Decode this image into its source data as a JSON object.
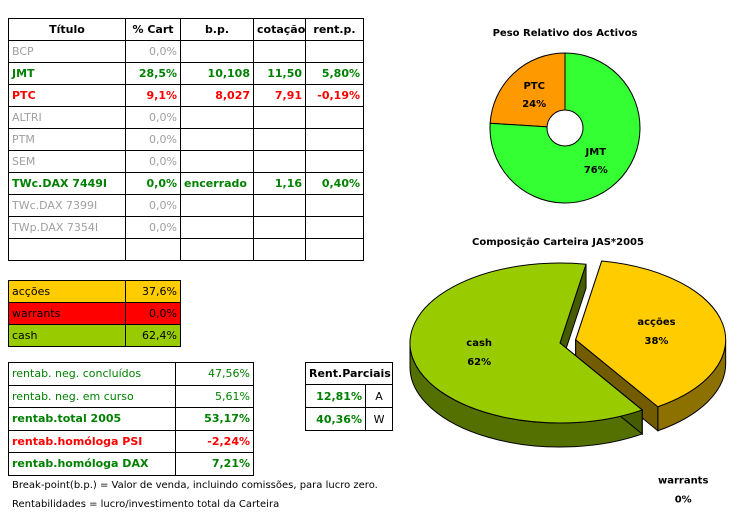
{
  "table": {
    "header": [
      "Título",
      "% Cart",
      "b.p.",
      "cotação",
      "rent.p."
    ],
    "rows": [
      {
        "color": "#a0a0a0",
        "cells": [
          "BCP",
          "0,0%"
        ]
      },
      {
        "color": "#008000",
        "cells": [
          "JMT",
          "28,5%",
          "10,108",
          "11,50",
          "5,80%"
        ]
      },
      {
        "color": "#ff0000",
        "cells": [
          "PTC",
          "9,1%",
          "8,027",
          "7,91",
          "-0,19%"
        ]
      },
      {
        "color": "#a0a0a0",
        "cells": [
          "ALTRI",
          "0,0%"
        ]
      },
      {
        "color": "#a0a0a0",
        "cells": [
          "PTM",
          "0,0%"
        ]
      },
      {
        "color": "#a0a0a0",
        "cells": [
          "SEM",
          "0,0%"
        ]
      },
      {
        "color": "#008000",
        "cells": [
          "TWc.DAX 7449I",
          "0,0%",
          "encerrado",
          "1,16",
          "0,40%"
        ]
      },
      {
        "color": "#a0a0a0",
        "cells": [
          "TWc.DAX 7399I",
          "0,0%"
        ]
      },
      {
        "color": "#a0a0a0",
        "cells": [
          "TWp.DAX 7354I",
          "0,0%"
        ]
      }
    ]
  },
  "allocation": [
    {
      "color": "#ffcc00",
      "cells": [
        "acções",
        "37,6%"
      ]
    },
    {
      "color": "#ff0000",
      "cells": [
        "warrants",
        "0,0%"
      ]
    },
    {
      "color": "#99cc00",
      "cells": [
        "cash",
        "62,4%"
      ]
    }
  ],
  "returns": [
    {
      "color": "#008000",
      "bold": false,
      "cells": [
        "rentab. neg. concluídos",
        "47,56%"
      ]
    },
    {
      "color": "#008000",
      "bold": false,
      "cells": [
        "rentab. neg. em curso",
        "5,61%"
      ]
    },
    {
      "color": "#008000",
      "bold": true,
      "cells": [
        "rentab.total 2005",
        "53,17%"
      ]
    },
    {
      "color": "#ff0000",
      "bold": true,
      "cells": [
        "rentab.homóloga PSI",
        "-2,24%"
      ]
    },
    {
      "color": "#008000",
      "bold": true,
      "cells": [
        "rentab.homóloga DAX",
        "7,21%"
      ]
    }
  ],
  "partial": {
    "header": "Rent.Parciais",
    "rows": [
      [
        "12,81%",
        "A"
      ],
      [
        "40,36%",
        "W"
      ]
    ]
  },
  "notes": [
    "Break-point(b.p.) = Valor de venda, incluindo comissões, para lucro zero.",
    "Rentabilidades = lucro/investimento total da Carteira"
  ],
  "chart_data": [
    {
      "type": "donut",
      "title": "Peso Relativo dos Activos",
      "categories": [
        "PTC",
        "JMT"
      ],
      "values": [
        24,
        76
      ],
      "value_labels": [
        "24%",
        "76%"
      ],
      "colors": [
        "#ff9900",
        "#33ff33"
      ]
    },
    {
      "type": "pie3d",
      "title": "Composição Carteira JAS*2005",
      "categories": [
        "acções",
        "warrants",
        "cash"
      ],
      "values": [
        38,
        0,
        62
      ],
      "value_labels": [
        "38%",
        "0%",
        "62%"
      ],
      "colors": [
        "#ffcc00",
        "#990000",
        "#99cc00"
      ],
      "explode": 0
    }
  ]
}
